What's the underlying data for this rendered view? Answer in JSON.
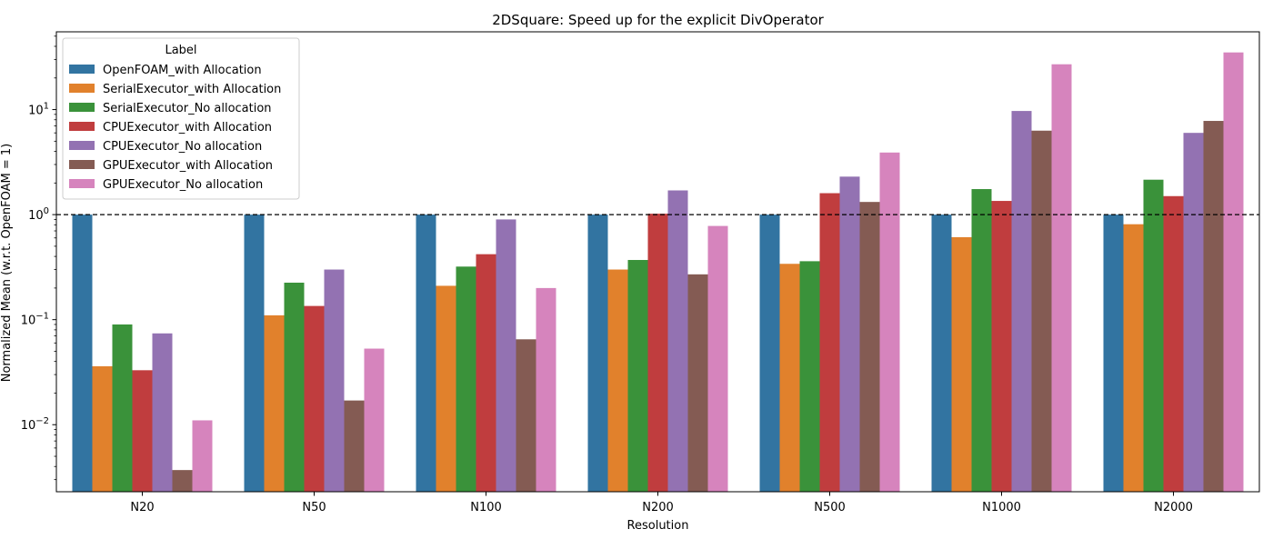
{
  "chart_data": {
    "type": "bar",
    "title": "2DSquare: Speed up for the explicit DivOperator",
    "xlabel": "Resolution",
    "ylabel": "Normalized Mean (w.r.t. OpenFOAM = 1)",
    "yscale": "log",
    "ylim": [
      0.0023,
      55
    ],
    "yticks": [
      {
        "value": 0.01,
        "base": "10",
        "exp": "−2"
      },
      {
        "value": 0.1,
        "base": "10",
        "exp": "−1"
      },
      {
        "value": 1,
        "base": "10",
        "exp": "0"
      },
      {
        "value": 10,
        "base": "10",
        "exp": "1"
      }
    ],
    "reference_line": 1,
    "categories": [
      "N20",
      "N50",
      "N100",
      "N200",
      "N500",
      "N1000",
      "N2000"
    ],
    "legend": {
      "title": "Label",
      "position": "top-left"
    },
    "series": [
      {
        "name": "OpenFOAM_with Allocation",
        "color": "#3274a1",
        "values": [
          1,
          1,
          1,
          1,
          1,
          1,
          1
        ]
      },
      {
        "name": "SerialExecutor_with Allocation",
        "color": "#e1812c",
        "values": [
          0.036,
          0.11,
          0.21,
          0.3,
          0.34,
          0.61,
          0.81
        ]
      },
      {
        "name": "SerialExecutor_No allocation",
        "color": "#3a923a",
        "values": [
          0.09,
          0.225,
          0.32,
          0.37,
          0.36,
          1.75,
          2.15
        ]
      },
      {
        "name": "CPUExecutor_with Allocation",
        "color": "#c03d3e",
        "values": [
          0.033,
          0.135,
          0.42,
          1.02,
          1.6,
          1.35,
          1.5
        ]
      },
      {
        "name": "CPUExecutor_No allocation",
        "color": "#9372b2",
        "values": [
          0.074,
          0.3,
          0.9,
          1.7,
          2.3,
          9.7,
          6.0
        ]
      },
      {
        "name": "GPUExecutor_with Allocation",
        "color": "#845b53",
        "values": [
          0.0037,
          0.017,
          0.065,
          0.27,
          1.32,
          6.3,
          7.8
        ]
      },
      {
        "name": "GPUExecutor_No allocation",
        "color": "#d684bd",
        "values": [
          0.011,
          0.053,
          0.2,
          0.78,
          3.9,
          27,
          35
        ]
      }
    ]
  }
}
